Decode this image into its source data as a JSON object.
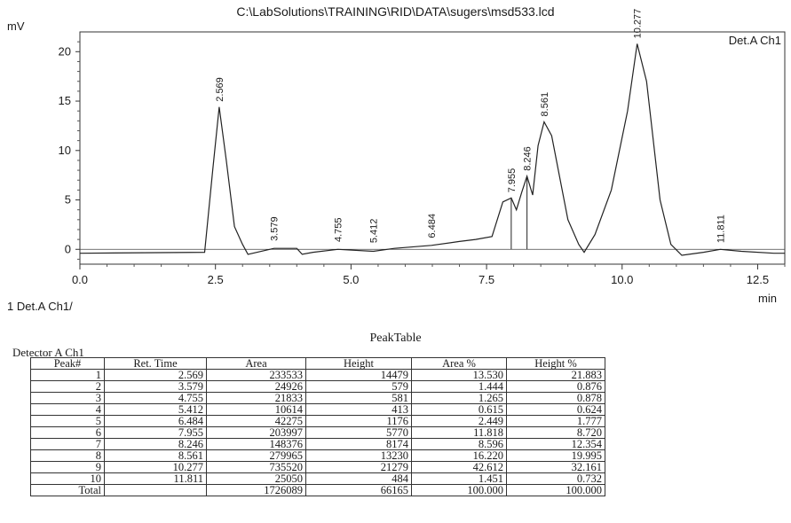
{
  "header": {
    "file_path": "C:\\LabSolutions\\TRAINING\\RID\\DATA\\sugers\\msd533.lcd"
  },
  "chart_data": {
    "type": "line",
    "title": "",
    "ylabel": "mV",
    "xlabel": "min",
    "xlim": [
      0,
      13
    ],
    "ylim": [
      -1.5,
      22
    ],
    "x_ticks": [
      "0.0",
      "2.5",
      "5.0",
      "7.5",
      "10.0",
      "12.5"
    ],
    "y_ticks": [
      "0",
      "5",
      "10",
      "15",
      "20"
    ],
    "legend": "top-right",
    "series": [
      {
        "name": "Det.A Ch1",
        "x": [
          0,
          2.3,
          2.45,
          2.569,
          2.7,
          2.85,
          3.0,
          3.1,
          3.579,
          4.0,
          4.1,
          4.3,
          4.755,
          5.412,
          5.8,
          6.484,
          7.0,
          7.3,
          7.6,
          7.8,
          7.955,
          8.05,
          8.15,
          8.246,
          8.35,
          8.45,
          8.561,
          8.7,
          9.0,
          9.2,
          9.3,
          9.5,
          9.8,
          10.1,
          10.277,
          10.45,
          10.7,
          10.9,
          11.1,
          11.5,
          11.811,
          12.2,
          12.8,
          13.0
        ],
        "y": [
          -0.4,
          -0.3,
          8.0,
          14.4,
          9.0,
          2.3,
          0.5,
          -0.5,
          0.1,
          0.1,
          -0.5,
          -0.3,
          0.0,
          -0.2,
          0.1,
          0.4,
          0.8,
          1.0,
          1.3,
          4.8,
          5.2,
          4.0,
          5.8,
          7.4,
          5.5,
          10.5,
          12.9,
          11.5,
          3.0,
          0.5,
          -0.3,
          1.5,
          6.0,
          14.0,
          20.8,
          17.0,
          5.0,
          0.5,
          -0.6,
          -0.3,
          0.0,
          -0.2,
          -0.4,
          -0.4
        ]
      }
    ],
    "peak_labels": [
      "2.569",
      "3.579",
      "4.755",
      "5.412",
      "6.484",
      "7.955",
      "8.246",
      "8.561",
      "10.277",
      "11.811"
    ],
    "peak_label_times": [
      2.569,
      3.579,
      4.755,
      5.412,
      6.484,
      7.955,
      8.246,
      8.561,
      10.277,
      11.811
    ],
    "peak_label_heights": [
      14.4,
      0.3,
      0.2,
      0.1,
      0.6,
      5.2,
      7.4,
      12.9,
      20.8,
      0.1
    ]
  },
  "footer_label": "1  Det.A Ch1/",
  "table": {
    "title": "PeakTable",
    "detector": "Detector A Ch1",
    "headers": [
      "Peak#",
      "Ret. Time",
      "Area",
      "Height",
      "Area %",
      "Height %"
    ],
    "rows": [
      [
        "1",
        "2.569",
        "233533",
        "14479",
        "13.530",
        "21.883"
      ],
      [
        "2",
        "3.579",
        "24926",
        "579",
        "1.444",
        "0.876"
      ],
      [
        "3",
        "4.755",
        "21833",
        "581",
        "1.265",
        "0.878"
      ],
      [
        "4",
        "5.412",
        "10614",
        "413",
        "0.615",
        "0.624"
      ],
      [
        "5",
        "6.484",
        "42275",
        "1176",
        "2.449",
        "1.777"
      ],
      [
        "6",
        "7.955",
        "203997",
        "5770",
        "11.818",
        "8.720"
      ],
      [
        "7",
        "8.246",
        "148376",
        "8174",
        "8.596",
        "12.354"
      ],
      [
        "8",
        "8.561",
        "279965",
        "13230",
        "16.220",
        "19.995"
      ],
      [
        "9",
        "10.277",
        "735520",
        "21279",
        "42.612",
        "32.161"
      ],
      [
        "10",
        "11.811",
        "25050",
        "484",
        "1.451",
        "0.732"
      ]
    ],
    "total_row": [
      "Total",
      "",
      "1726089",
      "66165",
      "100.000",
      "100.000"
    ]
  }
}
